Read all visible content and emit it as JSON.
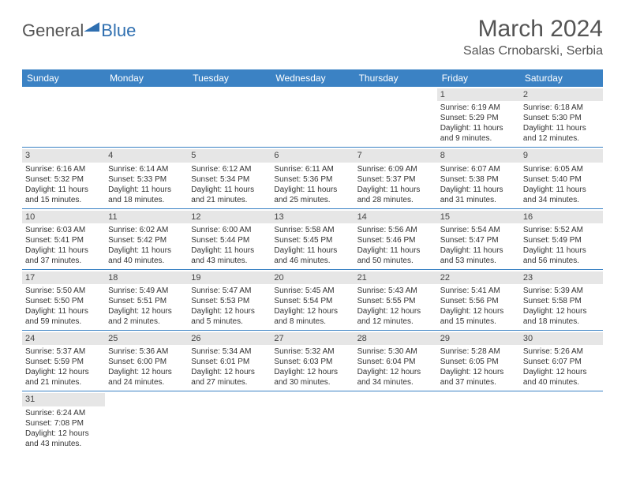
{
  "brand": {
    "part1": "General",
    "part2": "Blue"
  },
  "title": "March 2024",
  "location": "Salas Crnobarski, Serbia",
  "colors": {
    "header_bg": "#3b82c4",
    "header_text": "#ffffff",
    "daynum_bg": "#e6e6e6",
    "rule": "#3b82c4",
    "brand_gray": "#545454",
    "brand_blue": "#2f6fb0"
  },
  "day_labels": [
    "Sunday",
    "Monday",
    "Tuesday",
    "Wednesday",
    "Thursday",
    "Friday",
    "Saturday"
  ],
  "weeks": [
    [
      null,
      null,
      null,
      null,
      null,
      {
        "n": "1",
        "sr": "Sunrise: 6:19 AM",
        "ss": "Sunset: 5:29 PM",
        "d1": "Daylight: 11 hours",
        "d2": "and 9 minutes."
      },
      {
        "n": "2",
        "sr": "Sunrise: 6:18 AM",
        "ss": "Sunset: 5:30 PM",
        "d1": "Daylight: 11 hours",
        "d2": "and 12 minutes."
      }
    ],
    [
      {
        "n": "3",
        "sr": "Sunrise: 6:16 AM",
        "ss": "Sunset: 5:32 PM",
        "d1": "Daylight: 11 hours",
        "d2": "and 15 minutes."
      },
      {
        "n": "4",
        "sr": "Sunrise: 6:14 AM",
        "ss": "Sunset: 5:33 PM",
        "d1": "Daylight: 11 hours",
        "d2": "and 18 minutes."
      },
      {
        "n": "5",
        "sr": "Sunrise: 6:12 AM",
        "ss": "Sunset: 5:34 PM",
        "d1": "Daylight: 11 hours",
        "d2": "and 21 minutes."
      },
      {
        "n": "6",
        "sr": "Sunrise: 6:11 AM",
        "ss": "Sunset: 5:36 PM",
        "d1": "Daylight: 11 hours",
        "d2": "and 25 minutes."
      },
      {
        "n": "7",
        "sr": "Sunrise: 6:09 AM",
        "ss": "Sunset: 5:37 PM",
        "d1": "Daylight: 11 hours",
        "d2": "and 28 minutes."
      },
      {
        "n": "8",
        "sr": "Sunrise: 6:07 AM",
        "ss": "Sunset: 5:38 PM",
        "d1": "Daylight: 11 hours",
        "d2": "and 31 minutes."
      },
      {
        "n": "9",
        "sr": "Sunrise: 6:05 AM",
        "ss": "Sunset: 5:40 PM",
        "d1": "Daylight: 11 hours",
        "d2": "and 34 minutes."
      }
    ],
    [
      {
        "n": "10",
        "sr": "Sunrise: 6:03 AM",
        "ss": "Sunset: 5:41 PM",
        "d1": "Daylight: 11 hours",
        "d2": "and 37 minutes."
      },
      {
        "n": "11",
        "sr": "Sunrise: 6:02 AM",
        "ss": "Sunset: 5:42 PM",
        "d1": "Daylight: 11 hours",
        "d2": "and 40 minutes."
      },
      {
        "n": "12",
        "sr": "Sunrise: 6:00 AM",
        "ss": "Sunset: 5:44 PM",
        "d1": "Daylight: 11 hours",
        "d2": "and 43 minutes."
      },
      {
        "n": "13",
        "sr": "Sunrise: 5:58 AM",
        "ss": "Sunset: 5:45 PM",
        "d1": "Daylight: 11 hours",
        "d2": "and 46 minutes."
      },
      {
        "n": "14",
        "sr": "Sunrise: 5:56 AM",
        "ss": "Sunset: 5:46 PM",
        "d1": "Daylight: 11 hours",
        "d2": "and 50 minutes."
      },
      {
        "n": "15",
        "sr": "Sunrise: 5:54 AM",
        "ss": "Sunset: 5:47 PM",
        "d1": "Daylight: 11 hours",
        "d2": "and 53 minutes."
      },
      {
        "n": "16",
        "sr": "Sunrise: 5:52 AM",
        "ss": "Sunset: 5:49 PM",
        "d1": "Daylight: 11 hours",
        "d2": "and 56 minutes."
      }
    ],
    [
      {
        "n": "17",
        "sr": "Sunrise: 5:50 AM",
        "ss": "Sunset: 5:50 PM",
        "d1": "Daylight: 11 hours",
        "d2": "and 59 minutes."
      },
      {
        "n": "18",
        "sr": "Sunrise: 5:49 AM",
        "ss": "Sunset: 5:51 PM",
        "d1": "Daylight: 12 hours",
        "d2": "and 2 minutes."
      },
      {
        "n": "19",
        "sr": "Sunrise: 5:47 AM",
        "ss": "Sunset: 5:53 PM",
        "d1": "Daylight: 12 hours",
        "d2": "and 5 minutes."
      },
      {
        "n": "20",
        "sr": "Sunrise: 5:45 AM",
        "ss": "Sunset: 5:54 PM",
        "d1": "Daylight: 12 hours",
        "d2": "and 8 minutes."
      },
      {
        "n": "21",
        "sr": "Sunrise: 5:43 AM",
        "ss": "Sunset: 5:55 PM",
        "d1": "Daylight: 12 hours",
        "d2": "and 12 minutes."
      },
      {
        "n": "22",
        "sr": "Sunrise: 5:41 AM",
        "ss": "Sunset: 5:56 PM",
        "d1": "Daylight: 12 hours",
        "d2": "and 15 minutes."
      },
      {
        "n": "23",
        "sr": "Sunrise: 5:39 AM",
        "ss": "Sunset: 5:58 PM",
        "d1": "Daylight: 12 hours",
        "d2": "and 18 minutes."
      }
    ],
    [
      {
        "n": "24",
        "sr": "Sunrise: 5:37 AM",
        "ss": "Sunset: 5:59 PM",
        "d1": "Daylight: 12 hours",
        "d2": "and 21 minutes."
      },
      {
        "n": "25",
        "sr": "Sunrise: 5:36 AM",
        "ss": "Sunset: 6:00 PM",
        "d1": "Daylight: 12 hours",
        "d2": "and 24 minutes."
      },
      {
        "n": "26",
        "sr": "Sunrise: 5:34 AM",
        "ss": "Sunset: 6:01 PM",
        "d1": "Daylight: 12 hours",
        "d2": "and 27 minutes."
      },
      {
        "n": "27",
        "sr": "Sunrise: 5:32 AM",
        "ss": "Sunset: 6:03 PM",
        "d1": "Daylight: 12 hours",
        "d2": "and 30 minutes."
      },
      {
        "n": "28",
        "sr": "Sunrise: 5:30 AM",
        "ss": "Sunset: 6:04 PM",
        "d1": "Daylight: 12 hours",
        "d2": "and 34 minutes."
      },
      {
        "n": "29",
        "sr": "Sunrise: 5:28 AM",
        "ss": "Sunset: 6:05 PM",
        "d1": "Daylight: 12 hours",
        "d2": "and 37 minutes."
      },
      {
        "n": "30",
        "sr": "Sunrise: 5:26 AM",
        "ss": "Sunset: 6:07 PM",
        "d1": "Daylight: 12 hours",
        "d2": "and 40 minutes."
      }
    ],
    [
      {
        "n": "31",
        "sr": "Sunrise: 6:24 AM",
        "ss": "Sunset: 7:08 PM",
        "d1": "Daylight: 12 hours",
        "d2": "and 43 minutes."
      },
      null,
      null,
      null,
      null,
      null,
      null
    ]
  ]
}
